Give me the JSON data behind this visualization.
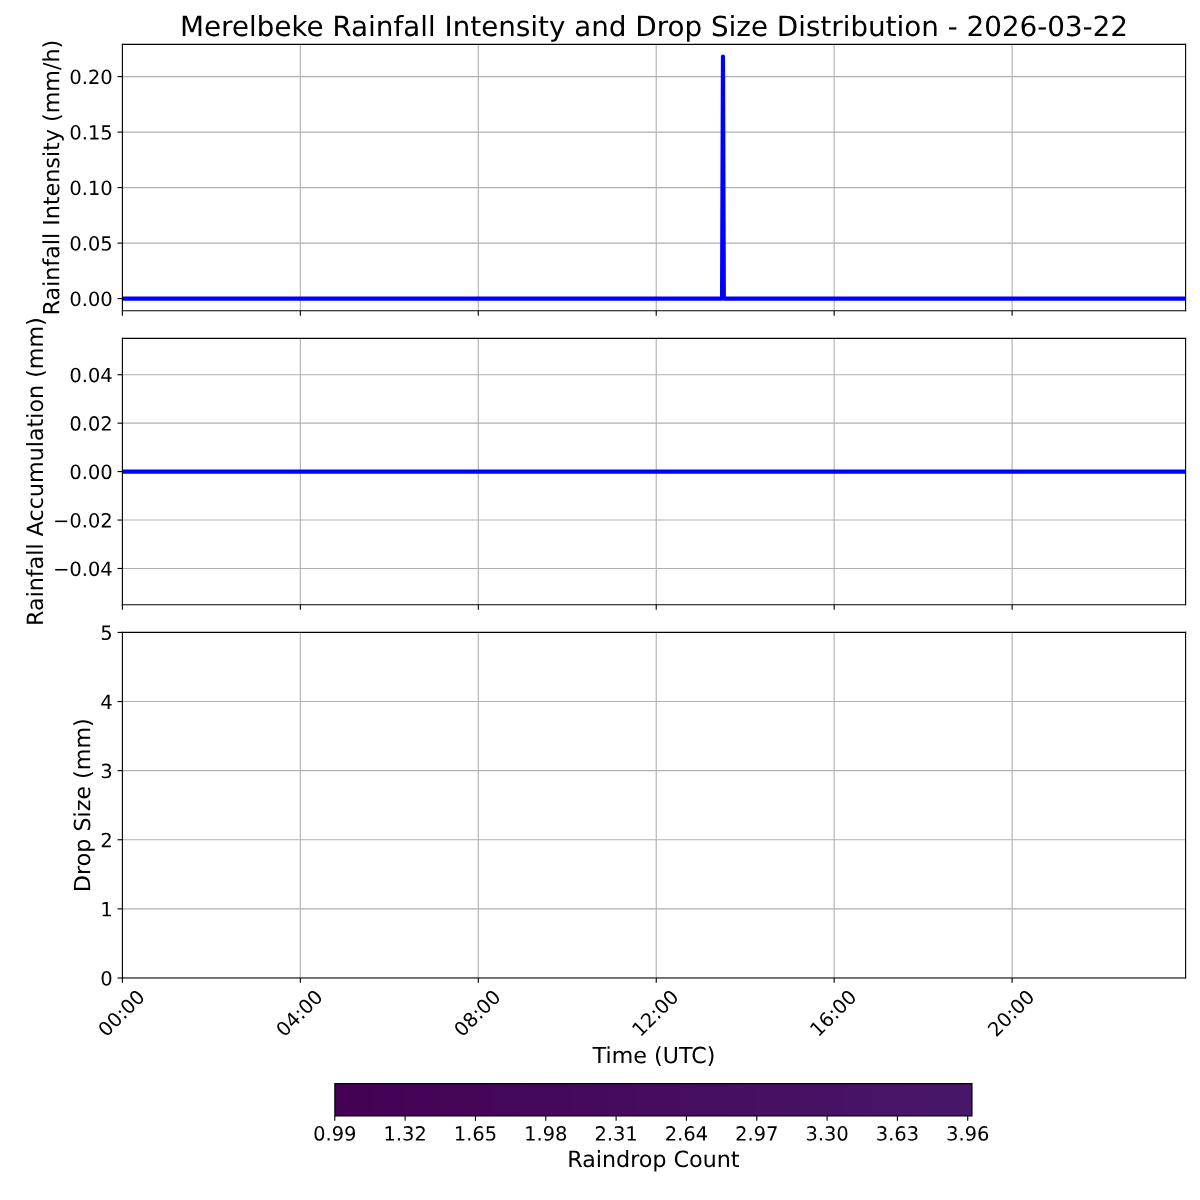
{
  "chart_data": [
    {
      "type": "line",
      "title": "Merelbeke Rainfall Intensity and Drop Size Distribution - 2026-03-22",
      "ylabel": "Rainfall Intensity (mm/h)",
      "series": [
        {
          "color": "#0000ff",
          "x": [
            0,
            13.48,
            13.5,
            13.52,
            23.9
          ],
          "values": [
            0,
            0,
            0.218,
            0,
            0
          ]
        }
      ],
      "xlim": [
        0,
        23.9
      ],
      "xticks": [
        {
          "value": 0,
          "label": null
        },
        {
          "value": 4,
          "label": null
        },
        {
          "value": 8,
          "label": null
        },
        {
          "value": 12,
          "label": null
        },
        {
          "value": 16,
          "label": null
        },
        {
          "value": 20,
          "label": null
        }
      ],
      "ylim": [
        -0.011,
        0.229
      ],
      "yticks": [
        {
          "value": 0,
          "label": "0.00"
        },
        {
          "value": 0.05,
          "label": "0.05"
        },
        {
          "value": 0.1,
          "label": "0.10"
        },
        {
          "value": 0.15,
          "label": "0.15"
        },
        {
          "value": 0.2,
          "label": "0.20"
        }
      ],
      "grid": true,
      "tick_labels": "y"
    },
    {
      "type": "line",
      "ylabel": "Rainfall Accumulation (mm)",
      "series": [
        {
          "color": "#0000ff",
          "x": [
            0,
            23.9
          ],
          "values": [
            0,
            0
          ]
        }
      ],
      "xlim": [
        0,
        23.9
      ],
      "xticks": [
        {
          "value": 0,
          "label": null
        },
        {
          "value": 4,
          "label": null
        },
        {
          "value": 8,
          "label": null
        },
        {
          "value": 12,
          "label": null
        },
        {
          "value": 16,
          "label": null
        },
        {
          "value": 20,
          "label": null
        }
      ],
      "ylim": [
        -0.055,
        0.055
      ],
      "yticks": [
        {
          "value": -0.04,
          "label": "−0.04"
        },
        {
          "value": -0.02,
          "label": "−0.02"
        },
        {
          "value": 0,
          "label": "0.00"
        },
        {
          "value": 0.02,
          "label": "0.02"
        },
        {
          "value": 0.04,
          "label": "0.04"
        }
      ],
      "grid": true,
      "tick_labels": "y"
    },
    {
      "type": "heatmap",
      "xlabel": "Time (UTC)",
      "ylabel": "Drop Size (mm)",
      "clabel": "Raindrop Count",
      "xlim": [
        0,
        23.9
      ],
      "xticks": [
        {
          "value": 0,
          "label": "00:00"
        },
        {
          "value": 4,
          "label": "04:00"
        },
        {
          "value": 8,
          "label": "08:00"
        },
        {
          "value": 12,
          "label": "12:00"
        },
        {
          "value": 16,
          "label": "16:00"
        },
        {
          "value": 20,
          "label": "20:00"
        }
      ],
      "ylim": [
        0,
        5
      ],
      "yticks": [
        0,
        1,
        2,
        3,
        4,
        5
      ],
      "clim": [
        0.99,
        3.98
      ],
      "cticks": [
        {
          "value": 0.99,
          "label": "0.99"
        },
        {
          "value": 1.32,
          "label": "1.32"
        },
        {
          "value": 1.65,
          "label": "1.65"
        },
        {
          "value": 1.98,
          "label": "1.98"
        },
        {
          "value": 2.31,
          "label": "2.31"
        },
        {
          "value": 2.64,
          "label": "2.64"
        },
        {
          "value": 2.97,
          "label": "2.97"
        },
        {
          "value": 3.3,
          "label": "3.30"
        },
        {
          "value": 3.63,
          "label": "3.63"
        },
        {
          "value": 3.96,
          "label": "3.96"
        }
      ],
      "grid": true
    }
  ]
}
